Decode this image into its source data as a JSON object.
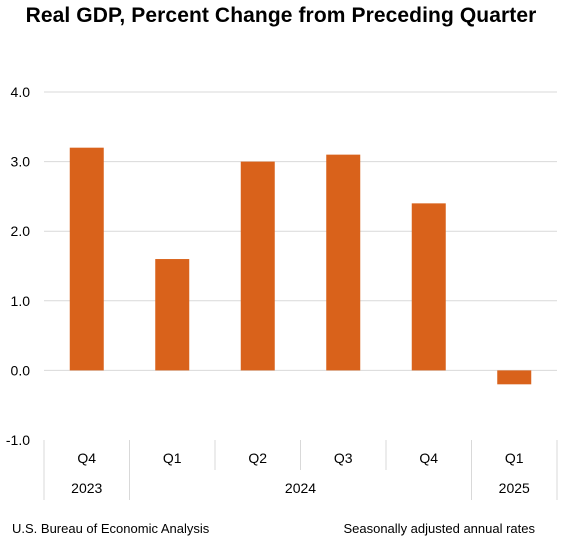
{
  "title": "Real GDP, Percent Change from Preceding Quarter",
  "footer": {
    "source": "U.S. Bureau of Economic Analysis",
    "note": "Seasonally adjusted annual rates"
  },
  "colors": {
    "bar": "#d9621b",
    "grid": "#d9d9d9",
    "text": "#000000"
  },
  "chart_data": {
    "type": "bar",
    "categories": [
      "Q4",
      "Q1",
      "Q2",
      "Q3",
      "Q4",
      "Q1"
    ],
    "years": [
      {
        "label": "2023",
        "span": 1
      },
      {
        "label": "2024",
        "span": 4
      },
      {
        "label": "2025",
        "span": 1
      }
    ],
    "values": [
      3.2,
      1.6,
      3.0,
      3.1,
      2.4,
      -0.2
    ],
    "y_ticks": [
      "4.0",
      "3.0",
      "2.0",
      "1.0",
      "0.0",
      "-1.0"
    ],
    "ylim": [
      -1.0,
      4.0
    ],
    "grid": true,
    "legend": "none"
  }
}
